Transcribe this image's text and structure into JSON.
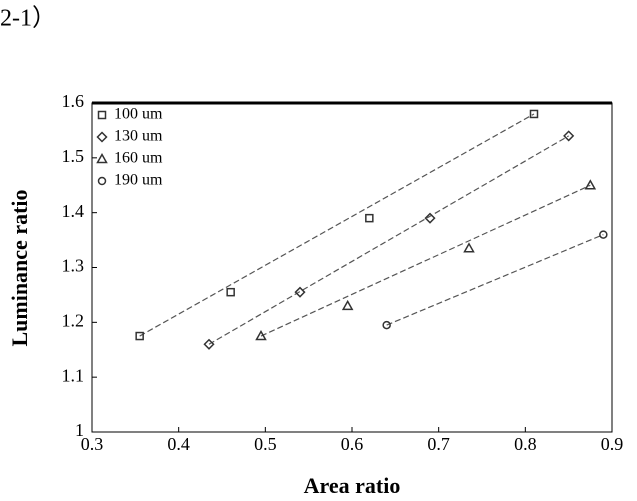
{
  "caption": "2-1）",
  "chart_data": {
    "type": "scatter",
    "x_label": "Area ratio",
    "y_label": "Luminance ratio",
    "xlim": [
      0.3,
      0.9
    ],
    "ylim": [
      1,
      1.6
    ],
    "xticks": [
      0.3,
      0.4,
      0.5,
      0.6,
      0.7,
      0.8,
      0.9
    ],
    "yticks": [
      1,
      1.1,
      1.2,
      1.3,
      1.4,
      1.5,
      1.6
    ],
    "legend": "upper left",
    "trendlines": true,
    "series": [
      {
        "name": "100 um",
        "marker": "square",
        "color": "#333333",
        "x": [
          0.355,
          0.46,
          0.62,
          0.81
        ],
        "values": [
          1.175,
          1.255,
          1.39,
          1.58
        ]
      },
      {
        "name": "130 um",
        "marker": "diamond",
        "color": "#333333",
        "x": [
          0.435,
          0.54,
          0.69,
          0.85
        ],
        "values": [
          1.16,
          1.255,
          1.39,
          1.54
        ]
      },
      {
        "name": "160 um",
        "marker": "triangle",
        "color": "#333333",
        "x": [
          0.495,
          0.595,
          0.735,
          0.875
        ],
        "values": [
          1.175,
          1.23,
          1.335,
          1.45
        ]
      },
      {
        "name": "190 um",
        "marker": "circle",
        "color": "#333333",
        "x": [
          0.64,
          0.89
        ],
        "values": [
          1.195,
          1.36
        ]
      }
    ]
  }
}
